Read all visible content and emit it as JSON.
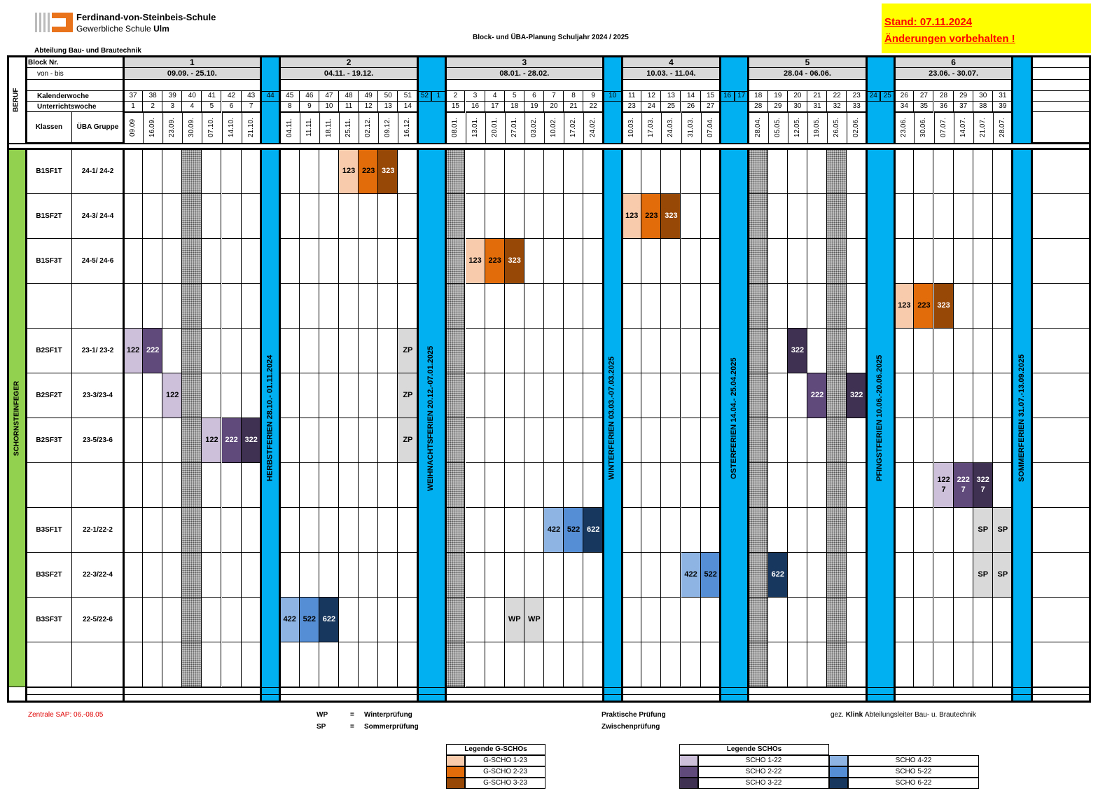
{
  "header": {
    "school": "Ferdinand-von-Steinbeis-Schule",
    "school_type": "Gewerbliche Schule",
    "city": "Ulm",
    "title": "Block- und ÜBA-Planung Schuljahr 2024 / 2025",
    "department": "Abteilung Bau- und Brautechnik",
    "status": "Stand: 07.11.2024",
    "notice": "Änderungen vorbehalten !"
  },
  "table": {
    "labels": {
      "beruf": "BERUF",
      "block": "Block Nr.",
      "range": "von - bis",
      "kw": "Kalenderwoche",
      "uw": "Unterrichtswoche",
      "klassen": "Klassen",
      "gruppe": "ÜBA Gruppe"
    },
    "profession": "SCHORNSTEINFEGER",
    "blocks": [
      {
        "nr": "1",
        "range": "09.09. - 25.10.",
        "kw": [
          37,
          38,
          39,
          40,
          41,
          42,
          43
        ],
        "uw": [
          1,
          2,
          3,
          4,
          5,
          6,
          7
        ],
        "dates": [
          "09.09",
          "16.09.",
          "23.09.",
          "30.09.",
          "07.10.",
          "14.10.",
          "21.10."
        ]
      },
      {
        "nr": "2",
        "range": "04.11.  -  19.12.",
        "kw": [
          45,
          46,
          47,
          48,
          49,
          50,
          51
        ],
        "uw": [
          8,
          9,
          10,
          11,
          12,
          13,
          14
        ],
        "dates": [
          "04.11.",
          "11.11.",
          "18.11.",
          "25.11.",
          "02.12.",
          "09.12.",
          "16.12."
        ]
      },
      {
        "nr": "3",
        "range": "08.01. - 28.02.",
        "kw": [
          2,
          3,
          4,
          5,
          6,
          7,
          8,
          9
        ],
        "uw": [
          15,
          16,
          17,
          18,
          19,
          20,
          21,
          22
        ],
        "dates": [
          "08.01.",
          "13.01.",
          "20.01.",
          "27.01.",
          "03.02.",
          "10.02.",
          "17.02.",
          "24.02."
        ]
      },
      {
        "nr": "4",
        "range": "10.03. - 11.04.",
        "kw": [
          11,
          12,
          13,
          14,
          15
        ],
        "uw": [
          23,
          24,
          25,
          26,
          27
        ],
        "dates": [
          "10.03.",
          "17.03.",
          "24.03.",
          "31.03.",
          "07.04."
        ]
      },
      {
        "nr": "5",
        "range": "28.04 - 06.06.",
        "kw": [
          18,
          19,
          20,
          21,
          22,
          23
        ],
        "uw": [
          28,
          29,
          30,
          31,
          32,
          33
        ],
        "dates": [
          "28.04.",
          "05.05.",
          "12.05.",
          "19.05.",
          "26.05.",
          "02.06."
        ]
      },
      {
        "nr": "6",
        "range": "23.06.  -  30.07.",
        "kw": [
          26,
          27,
          28,
          29,
          30,
          31
        ],
        "uw": [
          34,
          35,
          36,
          37,
          38,
          39
        ],
        "dates": [
          "23.06.",
          "30.06.",
          "07.07.",
          "14.07.",
          "21.07.",
          "28.07."
        ]
      }
    ],
    "holidays": [
      {
        "label": "HERBSTFERIEN   28.10.- 01.11.2024",
        "kw": [
          44
        ]
      },
      {
        "label": "WEIHNACHTSFERIEN  20.12.-07.01.2025",
        "kw": [
          52,
          1
        ]
      },
      {
        "label": "WINTERFERIEN  03.03.-07.03.2025",
        "kw": [
          10
        ]
      },
      {
        "label": "OSTERFERIEN  14.04.- 25.04.2025",
        "kw": [
          16,
          17
        ]
      },
      {
        "label": "PFINGSTFERIEN  10.06.-20.06.2025",
        "kw": [
          24,
          25
        ]
      },
      {
        "label": "SOMMERFERIEN   31.07.-13.09.2025"
      }
    ],
    "hatched_weeks": [
      40,
      2,
      18,
      22
    ],
    "rows": [
      {
        "klasse": "B1SF1T",
        "gruppe": "24-1/ 24-2",
        "cells": [
          {
            "week": 48,
            "label": "123",
            "color": "#f8cbad"
          },
          {
            "week": 49,
            "label": "223",
            "color": "#e26b0a"
          },
          {
            "week": 50,
            "label": "323",
            "color": "#974706"
          }
        ]
      },
      {
        "klasse": "B1SF2T",
        "gruppe": "24-3/ 24-4",
        "cells": [
          {
            "week": 11,
            "label": "123",
            "color": "#f8cbad"
          },
          {
            "week": 12,
            "label": "223",
            "color": "#e26b0a"
          },
          {
            "week": 13,
            "label": "323",
            "color": "#974706"
          }
        ]
      },
      {
        "klasse": "B1SF3T",
        "gruppe": "24-5/ 24-6",
        "cells": [
          {
            "week": 3,
            "label": "123",
            "color": "#f8cbad"
          },
          {
            "week": 4,
            "label": "223",
            "color": "#e26b0a"
          },
          {
            "week": 5,
            "label": "323",
            "color": "#974706"
          }
        ]
      },
      {
        "cells": [
          {
            "week": 26,
            "label": "123",
            "color": "#f8cbad"
          },
          {
            "week": 27,
            "label": "223",
            "color": "#e26b0a"
          },
          {
            "week": 28,
            "label": "323",
            "color": "#974706"
          }
        ]
      },
      {
        "klasse": "B2SF1T",
        "gruppe": "23-1/ 23-2",
        "cells": [
          {
            "week": 37,
            "label": "122",
            "color": "#ccc0da"
          },
          {
            "week": 38,
            "label": "222",
            "color": "#604a7b"
          },
          {
            "week": 51,
            "label": "ZP",
            "color": "#d9d9d9"
          },
          {
            "week": 20,
            "label": "322",
            "color": "#3f3151"
          }
        ]
      },
      {
        "klasse": "B2SF2T",
        "gruppe": "23-3/23-4",
        "cells": [
          {
            "week": 39,
            "label": "122",
            "color": "#ccc0da"
          },
          {
            "week": 51,
            "label": "ZP",
            "color": "#d9d9d9"
          },
          {
            "week": 21,
            "label": "222",
            "color": "#604a7b"
          },
          {
            "week": 23,
            "label": "322",
            "color": "#3f3151"
          }
        ]
      },
      {
        "klasse": "B2SF3T",
        "gruppe": "23-5/23-6",
        "cells": [
          {
            "week": 41,
            "label": "122",
            "color": "#ccc0da"
          },
          {
            "week": 42,
            "label": "222",
            "color": "#604a7b"
          },
          {
            "week": 43,
            "label": "322",
            "color": "#3f3151"
          },
          {
            "week": 51,
            "label": "ZP",
            "color": "#d9d9d9"
          }
        ]
      },
      {
        "cells": [
          {
            "week": 28,
            "label": "122\n7",
            "color": "#ccc0da"
          },
          {
            "week": 29,
            "label": "222\n7",
            "color": "#604a7b"
          },
          {
            "week": 30,
            "label": "322\n7",
            "color": "#3f3151"
          }
        ]
      },
      {
        "klasse": "B3SF1T",
        "gruppe": "22-1/22-2",
        "cells": [
          {
            "week": 7,
            "label": "422",
            "color": "#8db4e2"
          },
          {
            "week": 8,
            "label": "522",
            "color": "#558ed5"
          },
          {
            "week": 9,
            "label": "622",
            "color": "#17375e"
          },
          {
            "week": 30,
            "label": "SP",
            "color": "#d9d9d9"
          },
          {
            "week": 31,
            "label": "SP",
            "color": "#d9d9d9"
          }
        ]
      },
      {
        "klasse": "B3SF2T",
        "gruppe": "22-3/22-4",
        "cells": [
          {
            "week": 14,
            "label": "422",
            "color": "#8db4e2"
          },
          {
            "week": 15,
            "label": "522",
            "color": "#558ed5"
          },
          {
            "week": 19,
            "label": "622",
            "color": "#17375e"
          },
          {
            "week": 30,
            "label": "SP",
            "color": "#d9d9d9"
          },
          {
            "week": 31,
            "label": "SP",
            "color": "#d9d9d9"
          }
        ]
      },
      {
        "klasse": "B3SF3T",
        "gruppe": "22-5/22-6",
        "cells": [
          {
            "week": 45,
            "label": "422",
            "color": "#8db4e2"
          },
          {
            "week": 46,
            "label": "522",
            "color": "#558ed5"
          },
          {
            "week": 47,
            "label": "622",
            "color": "#17375e"
          },
          {
            "week": 5,
            "label": "WP",
            "color": "#d9d9d9"
          },
          {
            "week": 6,
            "label": "WP",
            "color": "#d9d9d9"
          }
        ]
      },
      {
        "cells": []
      }
    ]
  },
  "footer": {
    "sap": "Zentrale SAP: 06.-08.05",
    "abbreviations": [
      {
        "short": "WP",
        "eq": "=",
        "long": "Winterprüfung"
      },
      {
        "short": "SP",
        "eq": "=",
        "long": "Sommerprüfung"
      }
    ],
    "exams": [
      "Praktische Prüfung",
      "Zwischenprüfung"
    ],
    "signature": {
      "prefix": "gez.",
      "name": "Klink",
      "role": "Abteilungsleiter Bau- u. Brautechnik"
    }
  },
  "legends": [
    {
      "title": "Legende G-SCHOs",
      "items": [
        {
          "label": "G-SCHO 1-23",
          "color": "#f8cbad"
        },
        {
          "label": "G-SCHO 2-23",
          "color": "#e26b0a"
        },
        {
          "label": "G-SCHO 3-23",
          "color": "#974706"
        }
      ]
    },
    {
      "title": "Legende SCHOs",
      "items": [
        {
          "label": "SCHO 1-22",
          "color": "#ccc0da"
        },
        {
          "label": "SCHO 2-22",
          "color": "#604a7b"
        },
        {
          "label": "SCHO 3-22",
          "color": "#3f3151"
        },
        {
          "label": "SCHO 4-22",
          "color": "#8db4e2"
        },
        {
          "label": "SCHO 5-22",
          "color": "#558ed5"
        },
        {
          "label": "SCHO 6-22",
          "color": "#17375e"
        }
      ]
    }
  ]
}
